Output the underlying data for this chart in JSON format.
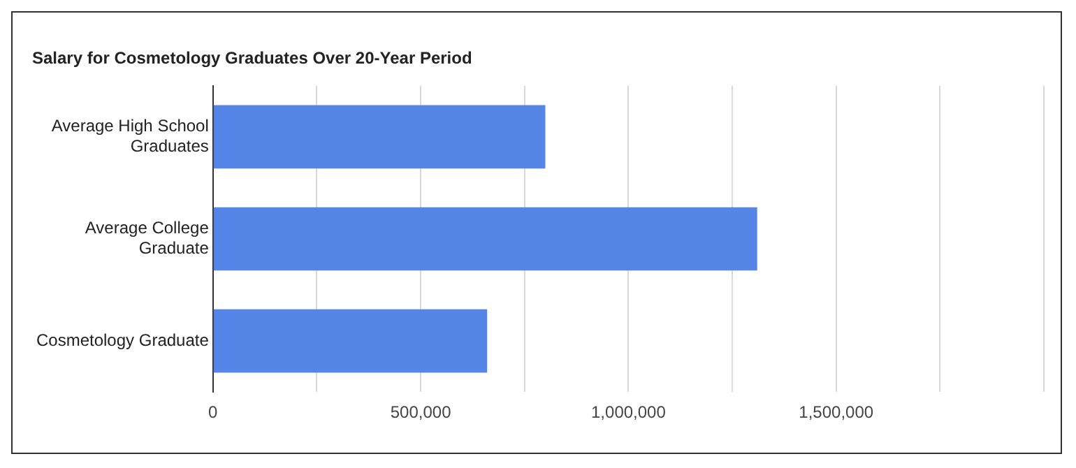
{
  "chart_data": {
    "type": "bar",
    "orientation": "horizontal",
    "title": "Salary for Cosmetology Graduates Over 20-Year Period",
    "categories": [
      "Average High School Graduates",
      "Average College Graduate",
      "Cosmetology Graduate"
    ],
    "values": [
      800000,
      1310000,
      660000
    ],
    "color": "#5585e6",
    "xlim": [
      0,
      2000000
    ],
    "xticks": [
      0,
      {
        "value": 250000,
        "label": null
      },
      {
        "value": 500000,
        "label": "500,000"
      },
      {
        "value": 750000,
        "label": null
      },
      {
        "value": 1000000,
        "label": "1,000,000"
      },
      {
        "value": 1250000,
        "label": null
      },
      {
        "value": 1500000,
        "label": "1,500,000"
      },
      {
        "value": 1750000,
        "label": null
      },
      {
        "value": 2000000,
        "label": null
      }
    ],
    "grid": "x",
    "legend": false
  }
}
